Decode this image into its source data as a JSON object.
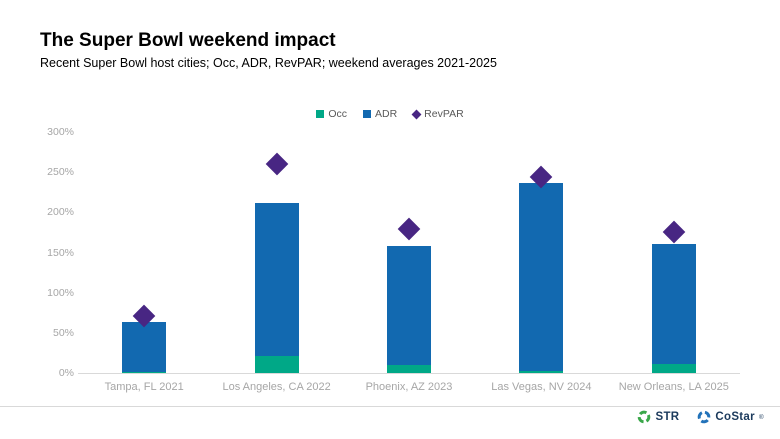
{
  "header": {
    "title": "The Super Bowl weekend impact",
    "subtitle": "Recent Super Bowl host cities; Occ, ADR, RevPAR; weekend averages 2021-2025"
  },
  "chart_data": {
    "type": "bar",
    "title": "The Super Bowl weekend impact",
    "subtitle": "Recent Super Bowl host cities; Occ, ADR, RevPAR; weekend averages 2021-2025",
    "units": "percent",
    "categories": [
      "Tampa, FL 2021",
      "Los Angeles, CA 2022",
      "Phoenix, AZ 2023",
      "Las Vegas, NV 2024",
      "New Orleans, LA 2025"
    ],
    "series": [
      {
        "name": "Occ",
        "mark": "bar",
        "color": "#00a887",
        "values": [
          1,
          21,
          10,
          2,
          11
        ]
      },
      {
        "name": "ADR",
        "mark": "bar",
        "color": "#1269b0",
        "values": [
          64,
          212,
          158,
          237,
          161
        ]
      },
      {
        "name": "RevPAR",
        "mark": "diamond",
        "color": "#482683",
        "values": [
          71,
          260,
          179,
          244,
          176
        ]
      }
    ],
    "ylim": [
      0,
      300
    ],
    "yticks": [
      {
        "value": 0,
        "label": "0%"
      },
      {
        "value": 50,
        "label": "50%"
      },
      {
        "value": 100,
        "label": "100%"
      },
      {
        "value": 150,
        "label": "150%"
      },
      {
        "value": 200,
        "label": "200%"
      },
      {
        "value": 250,
        "label": "250%"
      },
      {
        "value": 300,
        "label": "300%"
      }
    ],
    "legend_position": "top-center",
    "grid": false,
    "layout_note": "Occ bars are drawn overlaid in front of ADR bars at the same x position; RevPAR shown as diamond markers"
  },
  "footer": {
    "brands": [
      {
        "label": "STR",
        "icon": "str-ring-icon",
        "color": "#3aa74a",
        "suffix": ""
      },
      {
        "label": "CoStar",
        "icon": "costar-ring-icon",
        "color": "#2272b9",
        "suffix": "®"
      }
    ],
    "text_color": "#1b3a5c"
  },
  "colors": {
    "background": "#ffffff",
    "axis_label": "#a6a6a6",
    "axis_line": "#d9d9d9",
    "legend_text": "#595959"
  }
}
